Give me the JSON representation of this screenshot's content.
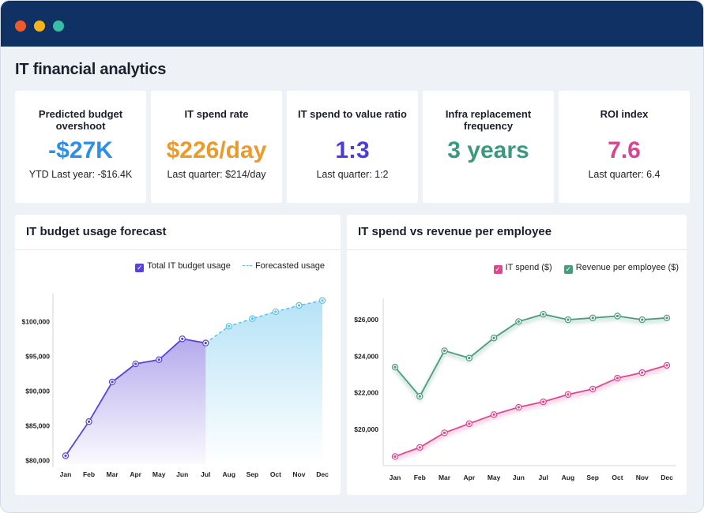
{
  "window": {
    "title": "IT financial analytics"
  },
  "kpis": [
    {
      "label": "Predicted budget overshoot",
      "value": "-$27K",
      "sub": "YTD Last year: -$16.4K",
      "color": "#2d8fe6"
    },
    {
      "label": "IT spend rate",
      "value": "$226/day",
      "sub": "Last quarter: $214/day",
      "color": "#eb9a2c"
    },
    {
      "label": "IT spend to value ratio",
      "value": "1:3",
      "sub": "Last quarter: 1:2",
      "color": "#4b3ed8"
    },
    {
      "label": "Infra replacement frequency",
      "value": "3 years",
      "sub": "",
      "color": "#3b9a7e"
    },
    {
      "label": "ROI index",
      "value": "7.6",
      "sub": "Last quarter: 6.4",
      "color": "#d84592"
    }
  ],
  "budget_panel": {
    "title": "IT budget usage forecast",
    "legend": {
      "actual": "Total IT budget usage",
      "forecast": "Forecasted usage"
    }
  },
  "spend_panel": {
    "title": "IT spend vs revenue per employee",
    "legend": {
      "spend": "IT spend ($)",
      "revenue": "Revenue per employee ($)"
    }
  },
  "colors": {
    "actual": "#5a42d6",
    "forecast": "#5cc0ea",
    "spend": "#e0468f",
    "revenue": "#4c9a7c",
    "titlebar": "#103164",
    "dots": [
      "#f05a2b",
      "#f5b417",
      "#36bfa4"
    ]
  },
  "chart_data": [
    {
      "type": "area",
      "categories": [
        "Jan",
        "Feb",
        "Mar",
        "Apr",
        "May",
        "Jun",
        "Jul",
        "Aug",
        "Sep",
        "Oct",
        "Nov",
        "Dec"
      ],
      "series": [
        {
          "name": "Total IT budget usage",
          "values": [
            80700,
            85600,
            91300,
            93900,
            94500,
            97500,
            96900,
            null,
            null,
            null,
            null,
            null
          ]
        },
        {
          "name": "Forecasted usage",
          "values": [
            null,
            null,
            null,
            null,
            null,
            null,
            96900,
            99300,
            100400,
            101400,
            102300,
            103000
          ]
        }
      ],
      "yticks": [
        80000,
        85000,
        90000,
        95000,
        100000
      ],
      "ytick_labels": [
        "$80,000",
        "$85,000",
        "$90,000",
        "$95,000",
        "$100,000"
      ],
      "ylim": [
        79500,
        104000
      ],
      "legend": "top-right"
    },
    {
      "type": "line",
      "categories": [
        "Jan",
        "Feb",
        "Mar",
        "Apr",
        "May",
        "Jun",
        "Jul",
        "Aug",
        "Sep",
        "Oct",
        "Nov",
        "Dec"
      ],
      "series": [
        {
          "name": "IT spend ($)",
          "values": [
            18500,
            19000,
            19800,
            20300,
            20800,
            21200,
            21500,
            21900,
            22200,
            22800,
            23100,
            23500
          ]
        },
        {
          "name": "Revenue per employee ($)",
          "values": [
            23400,
            21800,
            24300,
            23900,
            25000,
            25900,
            26300,
            26000,
            26100,
            26200,
            26000,
            26100
          ]
        }
      ],
      "yticks": [
        20000,
        22000,
        24000,
        26000
      ],
      "ytick_labels": [
        "$20,000",
        "$22,000",
        "$24,000",
        "$26,000"
      ],
      "ylim": [
        18000,
        27000
      ],
      "legend": "top-right"
    }
  ]
}
